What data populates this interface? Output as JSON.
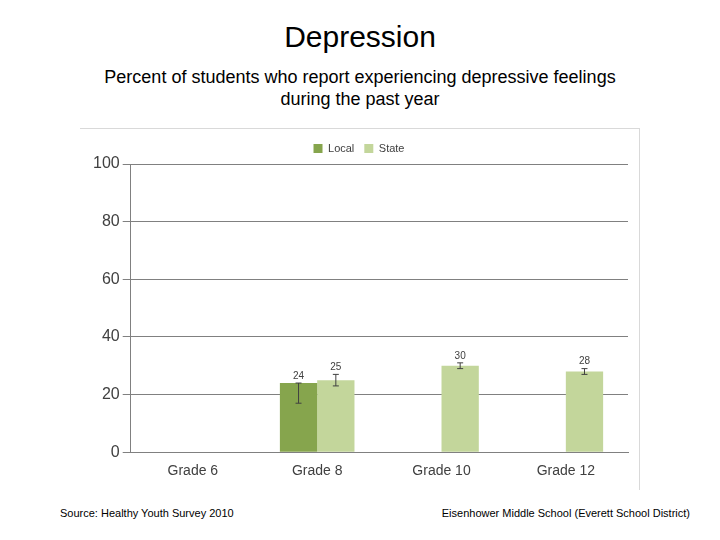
{
  "chart_data": {
    "type": "bar",
    "title": "Depression",
    "subtitle": "Percent of students who report experiencing depressive feelings during the past year",
    "categories": [
      "Grade 6",
      "Grade 8",
      "Grade 10",
      "Grade 12"
    ],
    "series": [
      {
        "name": "Local",
        "color": "#86a54d",
        "values": [
          null,
          24,
          null,
          null
        ],
        "errors": [
          null,
          [
            17,
            24
          ],
          null,
          null
        ]
      },
      {
        "name": "State",
        "color": "#c3d69b",
        "values": [
          null,
          25,
          30,
          28
        ],
        "errors": [
          null,
          [
            23,
            27
          ],
          [
            29,
            31
          ],
          [
            27,
            29
          ]
        ]
      }
    ],
    "ylim": [
      0,
      100
    ],
    "yticks": [
      0,
      20,
      40,
      60,
      80,
      100
    ],
    "grid": true,
    "legend": "top",
    "data_labels": true,
    "annotations": [
      "Source: Healthy Youth Survey 2010",
      "Eisenhower Middle School (Everett School District)"
    ]
  }
}
